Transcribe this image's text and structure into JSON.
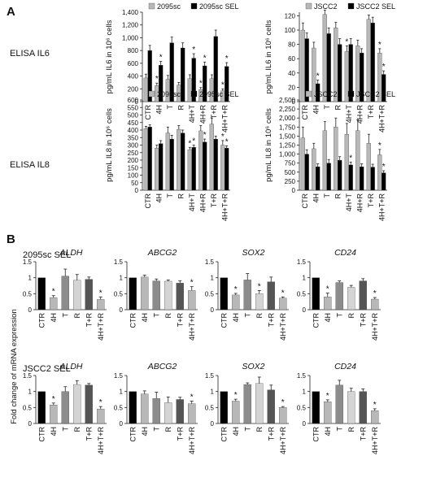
{
  "panels": {
    "a": {
      "letter": "A",
      "row1_label": "ELISA IL6",
      "row2_label": "ELISA IL8"
    },
    "b": {
      "letter": "B",
      "section1_label": "2095sc SEL",
      "section2_label": "JSCC2 SEL",
      "ylabel": "Fold change of mRNA expression"
    }
  },
  "colors": {
    "black": "#000000",
    "dark": "#555555",
    "mid": "#8c8c8c",
    "light": "#b8b8b8",
    "lighter": "#d4d4d4",
    "vlight": "#e0e0e0"
  },
  "chart_data": [
    {
      "id": "a1",
      "type": "bar",
      "ylabel": "pg/mL IL6 in 10⁶ cells",
      "categories": [
        "CTR",
        "4H",
        "T",
        "R",
        "4H+T",
        "4H+R",
        "T+R",
        "4H+T+R"
      ],
      "yticks": [
        0,
        200,
        400,
        600,
        800,
        1000,
        1200,
        1400
      ],
      "ytick_labels": [
        "0",
        "200",
        "400",
        "600",
        "800",
        "1,000",
        "1,200",
        "1,400"
      ],
      "ylim": [
        0,
        1400
      ],
      "series": [
        {
          "name": "2095sc",
          "color": "#b8b8b8",
          "values": [
            370,
            250,
            350,
            260,
            360,
            190,
            360,
            170
          ],
          "errors": [
            60,
            40,
            60,
            40,
            60,
            30,
            60,
            30
          ]
        },
        {
          "name": "2095sc SEL",
          "color": "#000000",
          "values": [
            800,
            570,
            920,
            840,
            680,
            560,
            1020,
            550
          ],
          "errors": [
            80,
            60,
            90,
            80,
            70,
            60,
            100,
            60
          ]
        }
      ],
      "stars": [
        [
          1,
          0
        ],
        [
          1,
          1
        ],
        [
          4,
          1
        ],
        [
          5,
          0
        ],
        [
          5,
          1
        ],
        [
          7,
          0
        ],
        [
          7,
          1
        ]
      ]
    },
    {
      "id": "a2",
      "type": "bar",
      "ylabel": "pg/mL IL6 in 10⁶ cells",
      "categories": [
        "CTR",
        "4H",
        "T",
        "R",
        "4H+T",
        "4H+R",
        "T+R",
        "4H+T+R"
      ],
      "yticks": [
        0,
        20,
        40,
        60,
        80,
        100,
        120
      ],
      "ytick_labels": [
        "0",
        "20",
        "40",
        "60",
        "80",
        "100",
        "120"
      ],
      "ylim": [
        0,
        125
      ],
      "series": [
        {
          "name": "JSCC2",
          "color": "#b8b8b8",
          "values": [
            100,
            75,
            122,
            103,
            70,
            78,
            115,
            68
          ],
          "errors": [
            10,
            8,
            6,
            8,
            8,
            8,
            6,
            6
          ]
        },
        {
          "name": "JSCC2 SEL",
          "color": "#000000",
          "values": [
            88,
            25,
            95,
            80,
            80,
            68,
            110,
            38
          ],
          "errors": [
            8,
            5,
            8,
            8,
            8,
            6,
            8,
            5
          ]
        }
      ],
      "stars": [
        [
          1,
          1
        ],
        [
          4,
          0
        ],
        [
          7,
          0
        ],
        [
          7,
          1
        ]
      ]
    },
    {
      "id": "a3",
      "type": "bar",
      "ylabel": "pg/mL IL8 in 10⁶ cells",
      "categories": [
        "CTR",
        "4H",
        "T",
        "R",
        "4H+T",
        "4H+R",
        "T+R",
        "4H+T+R"
      ],
      "yticks": [
        0,
        50,
        100,
        150,
        200,
        250,
        300,
        350,
        400,
        450,
        500,
        550,
        600
      ],
      "ytick_labels": [
        "0",
        "50",
        "100",
        "150",
        "200",
        "250",
        "300",
        "350",
        "400",
        "450",
        "500",
        "550",
        "600"
      ],
      "ylim": [
        0,
        600
      ],
      "series": [
        {
          "name": "2095sc",
          "color": "#b8b8b8",
          "values": [
            410,
            280,
            380,
            405,
            270,
            395,
            440,
            300
          ],
          "errors": [
            15,
            20,
            40,
            25,
            15,
            35,
            40,
            30
          ]
        },
        {
          "name": "2095sc SEL",
          "color": "#000000",
          "values": [
            420,
            310,
            340,
            380,
            285,
            320,
            340,
            280
          ],
          "errors": [
            15,
            20,
            25,
            20,
            15,
            20,
            20,
            15
          ]
        }
      ],
      "stars": [
        [
          4,
          0
        ],
        [
          4,
          1
        ],
        [
          5,
          1
        ],
        [
          7,
          0
        ],
        [
          7,
          1
        ]
      ]
    },
    {
      "id": "a4",
      "type": "bar",
      "ylabel": "pg/mL IL8 in 10⁶ cells",
      "categories": [
        "CTR",
        "4H",
        "T",
        "R",
        "4H+T",
        "4H+R",
        "T+R",
        "4H+T+R"
      ],
      "yticks": [
        0,
        250,
        500,
        750,
        1000,
        1250,
        1500,
        1750,
        2000,
        2250,
        2500
      ],
      "ytick_labels": [
        "0",
        "250",
        "500",
        "750",
        "1,000",
        "1,250",
        "1,500",
        "1,750",
        "2,000",
        "2,250",
        "2,500"
      ],
      "ylim": [
        0,
        2500
      ],
      "series": [
        {
          "name": "JSCC2",
          "color": "#b8b8b8",
          "values": [
            1450,
            1150,
            1650,
            1750,
            1550,
            1650,
            1300,
            980
          ],
          "errors": [
            300,
            150,
            250,
            250,
            300,
            300,
            250,
            150
          ]
        },
        {
          "name": "JSCC2 SEL",
          "color": "#000000",
          "values": [
            1000,
            650,
            750,
            830,
            700,
            650,
            640,
            480
          ],
          "errors": [
            120,
            80,
            100,
            100,
            80,
            80,
            80,
            60
          ]
        }
      ],
      "stars": [
        [
          4,
          1
        ],
        [
          7,
          0
        ],
        [
          7,
          1
        ]
      ]
    },
    {
      "id": "b1",
      "type": "bar",
      "title": "ALDH",
      "categories": [
        "CTR",
        "4H",
        "T",
        "R",
        "T+R",
        "4H+T+R"
      ],
      "yticks": [
        0,
        0.5,
        1,
        1.5
      ],
      "ytick_labels": [
        "0",
        "0.5",
        "1",
        "1.5"
      ],
      "ylim": [
        0,
        1.5
      ],
      "colors": [
        "#000000",
        "#b8b8b8",
        "#8c8c8c",
        "#d4d4d4",
        "#555555",
        "#b8b8b8"
      ],
      "values": [
        1.0,
        0.38,
        1.05,
        0.92,
        0.95,
        0.32
      ],
      "errors": [
        0,
        0.06,
        0.22,
        0.18,
        0.07,
        0.08
      ],
      "stars": [
        1,
        5
      ]
    },
    {
      "id": "b2",
      "type": "bar",
      "title": "ABCG2",
      "categories": [
        "CTR",
        "4H",
        "T",
        "R",
        "T+R",
        "4H+T+R"
      ],
      "yticks": [
        0,
        0.5,
        1,
        1.5
      ],
      "ytick_labels": [
        "0",
        "0.5",
        "1",
        "1.5"
      ],
      "ylim": [
        0,
        1.5
      ],
      "colors": [
        "#000000",
        "#b8b8b8",
        "#8c8c8c",
        "#d4d4d4",
        "#555555",
        "#b8b8b8"
      ],
      "values": [
        1.0,
        1.02,
        0.9,
        0.89,
        0.83,
        0.6
      ],
      "errors": [
        0,
        0.06,
        0.06,
        0.04,
        0.07,
        0.12
      ],
      "stars": [
        5
      ]
    },
    {
      "id": "b3",
      "type": "bar",
      "title": "SOX2",
      "categories": [
        "CTR",
        "4H",
        "T",
        "R",
        "T+R",
        "4H+T+R"
      ],
      "yticks": [
        0,
        0.5,
        1,
        1.5
      ],
      "ytick_labels": [
        "0",
        "0.5",
        "1",
        "1.5"
      ],
      "ylim": [
        0,
        1.5
      ],
      "colors": [
        "#000000",
        "#b8b8b8",
        "#8c8c8c",
        "#d4d4d4",
        "#555555",
        "#b8b8b8"
      ],
      "values": [
        1.0,
        0.46,
        0.93,
        0.5,
        0.87,
        0.36
      ],
      "errors": [
        0,
        0.05,
        0.2,
        0.1,
        0.15,
        0.04
      ],
      "stars": [
        1,
        3,
        5
      ]
    },
    {
      "id": "b4",
      "type": "bar",
      "title": "CD24",
      "categories": [
        "CTR",
        "4H",
        "T",
        "R",
        "T+R",
        "4H+T+R"
      ],
      "yticks": [
        0,
        0.5,
        1,
        1.5
      ],
      "ytick_labels": [
        "0",
        "0.5",
        "1",
        "1.5"
      ],
      "ylim": [
        0,
        1.5
      ],
      "colors": [
        "#000000",
        "#b8b8b8",
        "#8c8c8c",
        "#d4d4d4",
        "#555555",
        "#b8b8b8"
      ],
      "values": [
        1.0,
        0.4,
        0.85,
        0.7,
        0.9,
        0.33
      ],
      "errors": [
        0,
        0.12,
        0.05,
        0.06,
        0.07,
        0.05
      ],
      "stars": [
        1,
        5
      ]
    },
    {
      "id": "b5",
      "type": "bar",
      "title": "ALDH",
      "categories": [
        "CTR",
        "4H",
        "T",
        "R",
        "T+R",
        "4H+T+R"
      ],
      "yticks": [
        0,
        0.5,
        1,
        1.5
      ],
      "ytick_labels": [
        "0",
        "0.5",
        "1",
        "1.5"
      ],
      "ylim": [
        0,
        1.5
      ],
      "colors": [
        "#000000",
        "#b8b8b8",
        "#8c8c8c",
        "#d4d4d4",
        "#555555",
        "#b8b8b8"
      ],
      "values": [
        1.0,
        0.58,
        1.0,
        1.22,
        1.2,
        0.45
      ],
      "errors": [
        0,
        0.06,
        0.15,
        0.12,
        0.05,
        0.08
      ],
      "stars": [
        1,
        5
      ]
    },
    {
      "id": "b6",
      "type": "bar",
      "title": "ABCG2",
      "categories": [
        "CTR",
        "4H",
        "T",
        "R",
        "T+R",
        "4H+T+R"
      ],
      "yticks": [
        0,
        0.5,
        1,
        1.5
      ],
      "ytick_labels": [
        "0",
        "0.5",
        "1",
        "1.5"
      ],
      "ylim": [
        0,
        1.5
      ],
      "colors": [
        "#000000",
        "#b8b8b8",
        "#8c8c8c",
        "#d4d4d4",
        "#555555",
        "#b8b8b8"
      ],
      "values": [
        1.0,
        0.92,
        0.78,
        0.65,
        0.75,
        0.62
      ],
      "errors": [
        0,
        0.1,
        0.2,
        0.18,
        0.07,
        0.08
      ],
      "stars": [
        5
      ]
    },
    {
      "id": "b7",
      "type": "bar",
      "title": "SOX2",
      "categories": [
        "CTR",
        "4H",
        "T",
        "R",
        "T+R",
        "4H+T+R"
      ],
      "yticks": [
        0,
        0.5,
        1,
        1.5
      ],
      "ytick_labels": [
        "0",
        "0.5",
        "1",
        "1.5"
      ],
      "ylim": [
        0,
        1.5
      ],
      "colors": [
        "#000000",
        "#b8b8b8",
        "#8c8c8c",
        "#d4d4d4",
        "#555555",
        "#b8b8b8"
      ],
      "values": [
        1.0,
        0.7,
        1.22,
        1.25,
        1.05,
        0.5
      ],
      "errors": [
        0,
        0.06,
        0.05,
        0.2,
        0.15,
        0.03
      ],
      "stars": [
        1,
        5
      ]
    },
    {
      "id": "b8",
      "type": "bar",
      "title": "CD24",
      "categories": [
        "CTR",
        "4H",
        "T",
        "R",
        "T+R",
        "4H+T+R"
      ],
      "yticks": [
        0,
        0.5,
        1,
        1.5
      ],
      "ytick_labels": [
        "0",
        "0.5",
        "1",
        "1.5"
      ],
      "ylim": [
        0,
        1.5
      ],
      "colors": [
        "#000000",
        "#b8b8b8",
        "#8c8c8c",
        "#d4d4d4",
        "#555555",
        "#b8b8b8"
      ],
      "values": [
        1.0,
        0.68,
        1.2,
        1.0,
        1.0,
        0.4
      ],
      "errors": [
        0,
        0.06,
        0.15,
        0.1,
        0.08,
        0.06
      ],
      "stars": [
        1,
        5
      ]
    }
  ]
}
